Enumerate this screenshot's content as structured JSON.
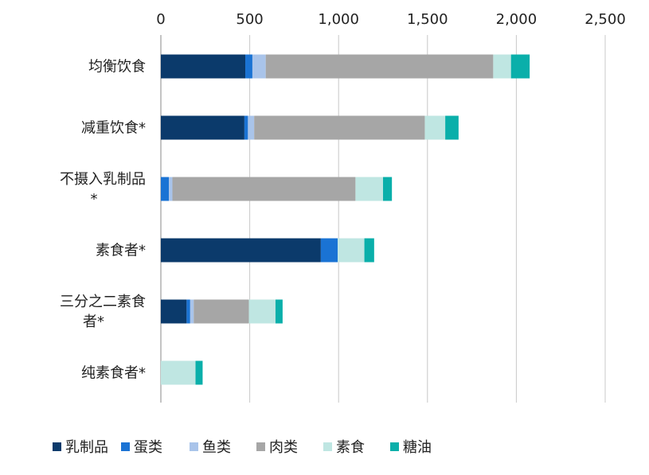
{
  "chart_data": {
    "type": "bar",
    "orientation": "horizontal",
    "stacked": true,
    "title": "",
    "xlabel": "",
    "ylabel": "",
    "xlim": [
      0,
      2500
    ],
    "xticks": [
      0,
      500,
      1000,
      1500,
      2000,
      2500
    ],
    "xtick_labels": [
      "0",
      "500",
      "1,000",
      "1,500",
      "2,000",
      "2,500"
    ],
    "grid": true,
    "axis_position": "top",
    "legend_position": "bottom",
    "categories": [
      [
        "均衡饮食"
      ],
      [
        "减重饮食*"
      ],
      [
        "不摄入乳制品",
        "*"
      ],
      [
        "素食者*"
      ],
      [
        "三分之二素食",
        "者*"
      ],
      [
        "纯素食者*"
      ]
    ],
    "series": [
      {
        "name": "乳制品",
        "color": "#0b3a6b",
        "values": [
          475,
          470,
          0,
          900,
          145,
          0
        ]
      },
      {
        "name": "蛋类",
        "color": "#1a73d4",
        "values": [
          40,
          20,
          45,
          95,
          20,
          0
        ]
      },
      {
        "name": "鱼类",
        "color": "#a9c4ea",
        "values": [
          75,
          35,
          20,
          0,
          20,
          0
        ]
      },
      {
        "name": "肉类",
        "color": "#a6a6a6",
        "values": [
          1280,
          960,
          1030,
          0,
          310,
          0
        ]
      },
      {
        "name": "素食",
        "color": "#bfe6e2",
        "values": [
          100,
          115,
          155,
          150,
          150,
          195
        ]
      },
      {
        "name": "糖油",
        "color": "#0aafaa",
        "values": [
          105,
          75,
          50,
          55,
          40,
          40
        ]
      }
    ]
  }
}
